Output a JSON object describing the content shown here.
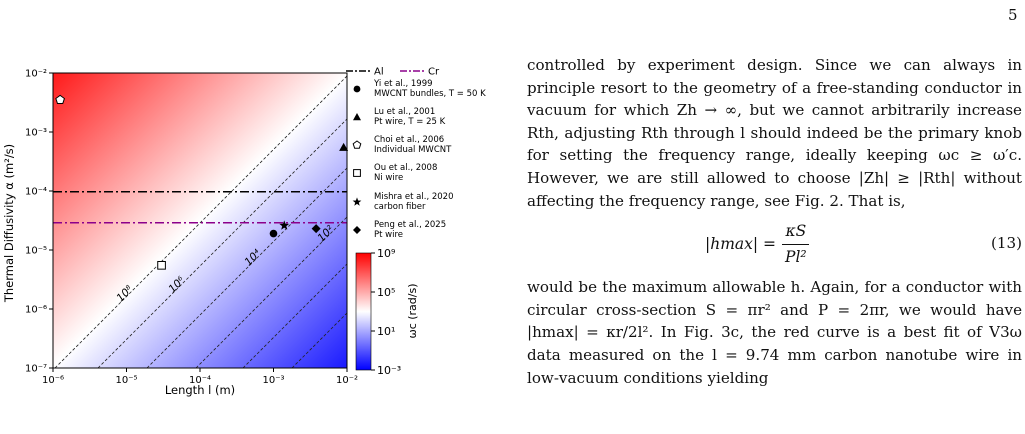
{
  "page": {
    "number": "5"
  },
  "figure": {
    "chart_data": {
      "type": "heatmap",
      "xlabel": "Length l (m)",
      "ylabel": "Thermal Diffusivity α (m²/s)",
      "x_scale": "log",
      "y_scale": "log",
      "xlim": [
        1e-06,
        0.01
      ],
      "ylim": [
        1e-07,
        0.01
      ],
      "x_ticks": [
        "10⁻⁶",
        "10⁻⁵",
        "10⁻⁴",
        "10⁻³",
        "10⁻²"
      ],
      "y_ticks": [
        "10⁻⁷",
        "10⁻⁶",
        "10⁻⁵",
        "10⁻⁴",
        "10⁻³",
        "10⁻²"
      ],
      "colorbar": {
        "label": "ωc (rad/s)",
        "scale": "log",
        "range": [
          0.001,
          1000000000.0
        ],
        "ticks": [
          "10⁹",
          "10⁵",
          "10¹",
          "10⁻³"
        ],
        "colors": [
          "#ff0000",
          "#ffffff",
          "#0000ff"
        ]
      },
      "contours": [
        {
          "label": "10⁸",
          "value": 100000000.0
        },
        {
          "label": "10⁶",
          "value": 1000000.0
        },
        {
          "label": "10⁴",
          "value": 10000.0
        },
        {
          "label": "10²",
          "value": 100.0
        },
        {
          "label": "10⁰",
          "value": 1
        },
        {
          "label": "10⁻²",
          "value": 0.01
        }
      ],
      "hlines": [
        {
          "name": "Al",
          "y": 9.7e-05,
          "color": "#000000",
          "style": "dash-dot"
        },
        {
          "name": "Cr",
          "y": 2.9e-05,
          "color": "#8b008b",
          "style": "dash-dot"
        }
      ],
      "points": [
        {
          "line1": "Yi et al., 1999",
          "line2": "MWCNT bundles, T = 50 K",
          "marker": "circle",
          "x": 0.001,
          "y": 1.9e-05
        },
        {
          "line1": "Lu et al., 2001",
          "line2": "Pt wire, T = 25 K",
          "marker": "triangle",
          "x": 0.009,
          "y": 0.00055
        },
        {
          "line1": "Choi et al., 2006",
          "line2": "Individual MWCNT",
          "marker": "pentagon",
          "x": 1.25e-06,
          "y": 0.0035
        },
        {
          "line1": "Ou et al., 2008",
          "line2": "Ni wire",
          "marker": "square",
          "x": 3e-05,
          "y": 5.5e-06
        },
        {
          "line1": "Mishra et al., 2020",
          "line2": "carbon fiber",
          "marker": "star",
          "x": 0.0014,
          "y": 2.6e-05
        },
        {
          "line1": "Peng et al., 2025",
          "line2": "Pt wire",
          "marker": "diamond",
          "x": 0.0038,
          "y": 2.3e-05
        }
      ]
    }
  },
  "text": {
    "para1": "controlled by experiment design. Since we can always in principle resort to the geometry of a free-standing conductor in vacuum for which Zh → ∞, but we cannot arbitrarily increase Rth, adjusting Rth through l should indeed be the primary knob for setting the frequency range, ideally keeping ωc ≥ ω′c. However, we are still allowed to choose |Zh| ≥ |Rth| without affecting the frequency range, see Fig. 2. That is,",
    "equation": {
      "lhs": "|hmax| =",
      "numerator": "κS",
      "denominator": "Pl²",
      "number": "(13)"
    },
    "para2": "would be the maximum allowable h. Again, for a conductor with circular cross-section S = πr² and P = 2πr, we would have |hmax| = κr/2l². In Fig. 3c, the red curve is a best fit of V3ω data measured on the l = 9.74 mm carbon nanotube wire in low-vacuum conditions yielding"
  }
}
